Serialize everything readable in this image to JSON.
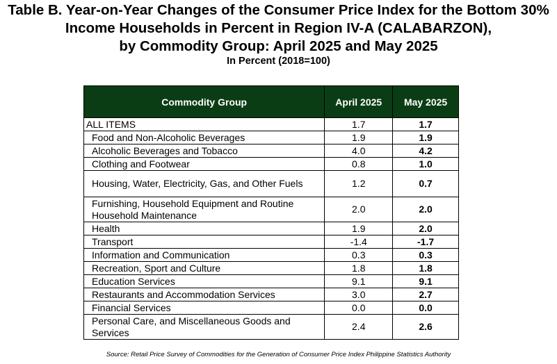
{
  "title": {
    "line1": "Table B. Year-on-Year Changes of the Consumer Price Index for the Bottom 30%",
    "line2": "Income Households in Percent in Region IV-A (CALABARZON),",
    "line3": "by Commodity Group: April 2025 and May 2025"
  },
  "subtitle": "In Percent (2018=100)",
  "table": {
    "headers": [
      "Commodity Group",
      "April 2025",
      "May 2025"
    ],
    "rows": [
      {
        "group": "ALL ITEMS",
        "april": "1.7",
        "may": "1.7"
      },
      {
        "group": "Food and Non-Alcoholic Beverages",
        "april": "1.9",
        "may": "1.9"
      },
      {
        "group": "Alcoholic Beverages and Tobacco",
        "april": "4.0",
        "may": "4.2"
      },
      {
        "group": "Clothing and Footwear",
        "april": "0.8",
        "may": "1.0"
      },
      {
        "group": "Housing, Water, Electricity, Gas, and Other Fuels",
        "april": "1.2",
        "may": "0.7"
      },
      {
        "group": "Furnishing, Household Equipment and Routine Household Maintenance",
        "april": "2.0",
        "may": "2.0"
      },
      {
        "group": "Health",
        "april": "1.9",
        "may": "2.0"
      },
      {
        "group": "Transport",
        "april": "-1.4",
        "may": "-1.7"
      },
      {
        "group": "Information and Communication",
        "april": "0.3",
        "may": "0.3"
      },
      {
        "group": "Recreation, Sport and Culture",
        "april": "1.8",
        "may": "1.8"
      },
      {
        "group": "Education Services",
        "april": "9.1",
        "may": "9.1"
      },
      {
        "group": "Restaurants and Accommodation Services",
        "april": "3.0",
        "may": "2.7"
      },
      {
        "group": "Financial Services",
        "april": "0.0",
        "may": "0.0"
      },
      {
        "group": "Personal Care, and Miscellaneous Goods and Services",
        "april": "2.4",
        "may": "2.6"
      }
    ]
  },
  "source": "Source: Retail Price Survey of Commodities for the Generation of Consumer Price Index Philippine Statistics Authority",
  "colors": {
    "header_bg": "#0b3d15",
    "header_text": "#ffffff"
  }
}
